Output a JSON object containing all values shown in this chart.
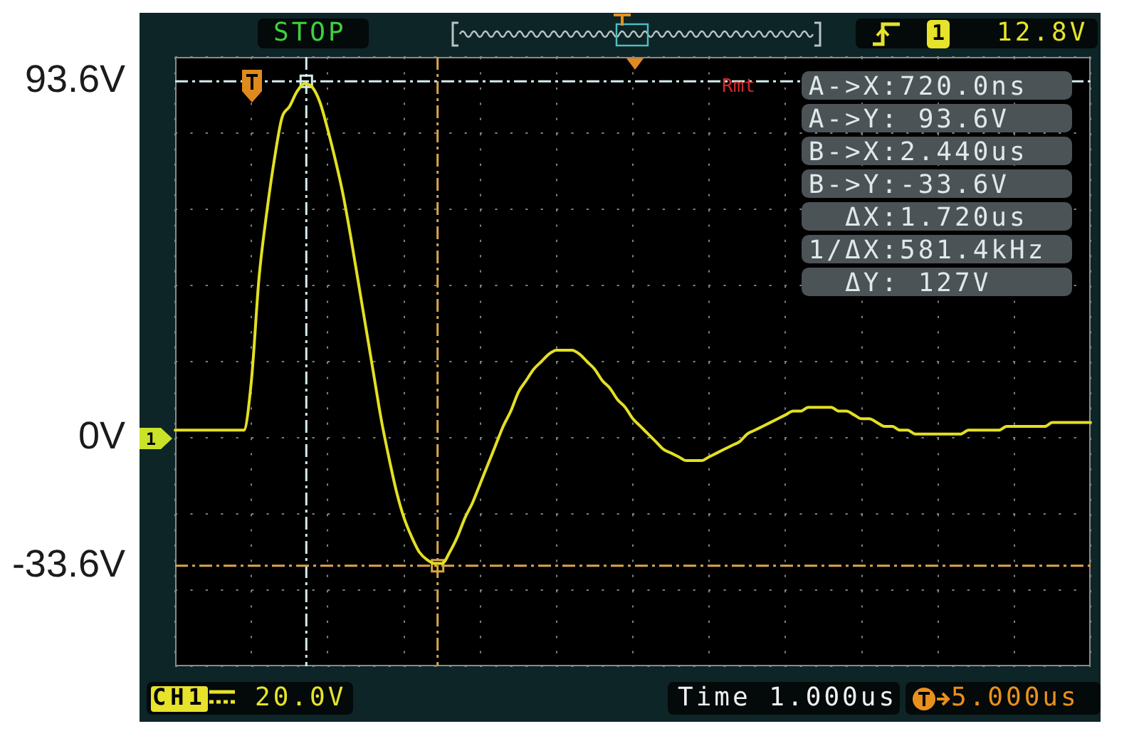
{
  "chart_data": {
    "type": "line",
    "categories": [
      null,
      null,
      null,
      null,
      null,
      null,
      null,
      null,
      null,
      null,
      null,
      null,
      null,
      null,
      null,
      null,
      null,
      null,
      null,
      null,
      null,
      null,
      null,
      null,
      null,
      null,
      null,
      null,
      null,
      null,
      null,
      null,
      null,
      null,
      null,
      null,
      null,
      null,
      null,
      null,
      null,
      null,
      null,
      null,
      null,
      null,
      null,
      null,
      null,
      null,
      null,
      null,
      null,
      null,
      null,
      null,
      null,
      null,
      null,
      null,
      null,
      null,
      null,
      null,
      null,
      null,
      null,
      null,
      null,
      null,
      null,
      null,
      null,
      null,
      null,
      null,
      null,
      null,
      null,
      null,
      null,
      null,
      null,
      null,
      null,
      null,
      null,
      null,
      null,
      null,
      null,
      null,
      null,
      null,
      null,
      null,
      null,
      null,
      null,
      null,
      null,
      null,
      null,
      null,
      null,
      null,
      null,
      null,
      null,
      null,
      null,
      null,
      null,
      null,
      null,
      null,
      null,
      null,
      null,
      null,
      null
    ],
    "series": [
      {
        "color": "#e3df22",
        "values": [
          2,
          2,
          2,
          2,
          2,
          2,
          2,
          2,
          2,
          2,
          15,
          42,
          59,
          73,
          84,
          87,
          91,
          93,
          92,
          88,
          81,
          73,
          64,
          53,
          41,
          29,
          17,
          5,
          -5,
          -14,
          -21,
          -26,
          -30,
          -32,
          -33,
          -33,
          -30,
          -26,
          -21,
          -17,
          -12,
          -7,
          -2,
          3,
          7,
          12,
          15,
          18,
          20,
          22,
          23,
          23,
          23,
          22,
          20,
          18,
          15,
          13,
          10,
          8,
          5,
          3,
          1,
          -1,
          -3,
          -4,
          -5,
          -6,
          -6,
          -6,
          -5,
          -4,
          -3,
          -2,
          -1,
          1,
          2,
          3,
          4,
          5,
          6,
          7,
          7,
          8,
          8,
          8,
          8,
          7,
          7,
          6,
          5,
          5,
          4,
          3,
          3,
          2,
          2,
          1,
          1,
          1,
          1,
          1,
          1,
          1,
          2,
          2,
          2,
          2,
          2,
          3,
          3,
          3,
          3,
          3,
          3,
          4,
          4,
          4,
          4,
          4,
          4
        ]
      }
    ],
    "ylim": [
      -60,
      100
    ],
    "yticks": [
      {
        "value": -60,
        "label": null
      },
      {
        "value": -40,
        "label": null
      },
      {
        "value": -33.6,
        "label": "-33.6V"
      },
      {
        "value": -20,
        "label": null
      },
      {
        "value": 0,
        "label": "0V"
      },
      {
        "value": 20,
        "label": null
      },
      {
        "value": 40,
        "label": null
      },
      {
        "value": 60,
        "label": null
      },
      {
        "value": 80,
        "label": null
      },
      {
        "value": 93.6,
        "label": "93.6V"
      },
      {
        "value": 100,
        "label": null
      }
    ],
    "tick_labels": "y",
    "grid": true,
    "annotations": [
      "STOP",
      "1",
      "12.8V",
      "Rmt",
      "A->X:720.0ns",
      "A->Y: 93.6V",
      "B->X:2.440us",
      "B->Y:-33.6V",
      "ΔX:1.720us",
      "1/ΔX:581.4kHz",
      "ΔY: 127V",
      "1",
      "CH1",
      "20.0V",
      "Time 1.000us",
      "5.000us"
    ]
  }
}
